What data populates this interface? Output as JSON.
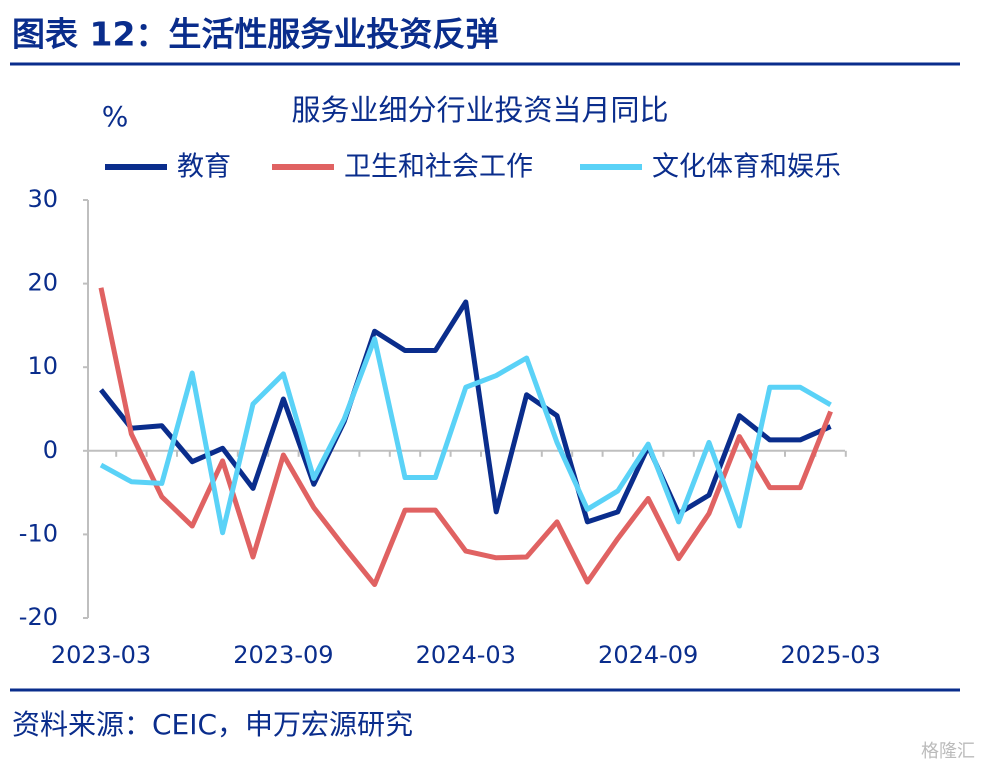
{
  "header": {
    "title": "图表 12：生活性服务业投资反弹"
  },
  "chart_data": {
    "type": "line",
    "title": "服务业细分行业投资当月同比",
    "y_label": "%",
    "categories": [
      "2023-03",
      null,
      null,
      null,
      null,
      null,
      "2023-09",
      null,
      null,
      null,
      null,
      null,
      "2024-03",
      null,
      null,
      null,
      null,
      null,
      "2024-09",
      null,
      null,
      null,
      null,
      null,
      "2025-03"
    ],
    "series": [
      {
        "name": "教育",
        "color": "#0a2d8c",
        "values": [
          7.3,
          2.7,
          3.0,
          -1.3,
          0.3,
          -4.5,
          6.2,
          -4.0,
          3.5,
          14.3,
          12,
          12,
          17.8,
          -7.3,
          6.7,
          4.2,
          -8.5,
          -7.3,
          0.5,
          -7.5,
          -5.3,
          4.2,
          1.3,
          1.3,
          2.9
        ]
      },
      {
        "name": "卫生和社会工作",
        "color": "#e06262",
        "values": [
          19.5,
          2,
          -5.5,
          -9,
          -1.2,
          -12.7,
          -0.5,
          -6.8,
          -11.5,
          -16,
          -7.1,
          -7.1,
          -12,
          -12.8,
          -12.7,
          -8.5,
          -15.7,
          -10.5,
          -5.7,
          -12.9,
          -7.5,
          1.7,
          -4.4,
          -4.4,
          4.7
        ]
      },
      {
        "name": "文化体育和娱乐",
        "color": "#5ad2f7",
        "values": [
          -1.7,
          -3.7,
          -3.9,
          9.3,
          -9.8,
          5.6,
          9.2,
          -3.3,
          3.8,
          13.4,
          -3.2,
          -3.2,
          7.6,
          9.0,
          11.1,
          1.0,
          -7,
          -4.8,
          0.8,
          -8.5,
          1.0,
          -9,
          7.6,
          7.6,
          5.5
        ]
      }
    ],
    "ylim": [
      -20,
      30
    ],
    "yticks": [
      -20,
      -10,
      0,
      10,
      20,
      30
    ],
    "grid": false
  },
  "footer": {
    "source": "资料来源：CEIC，申万宏源研究",
    "watermark": "格隆汇"
  }
}
